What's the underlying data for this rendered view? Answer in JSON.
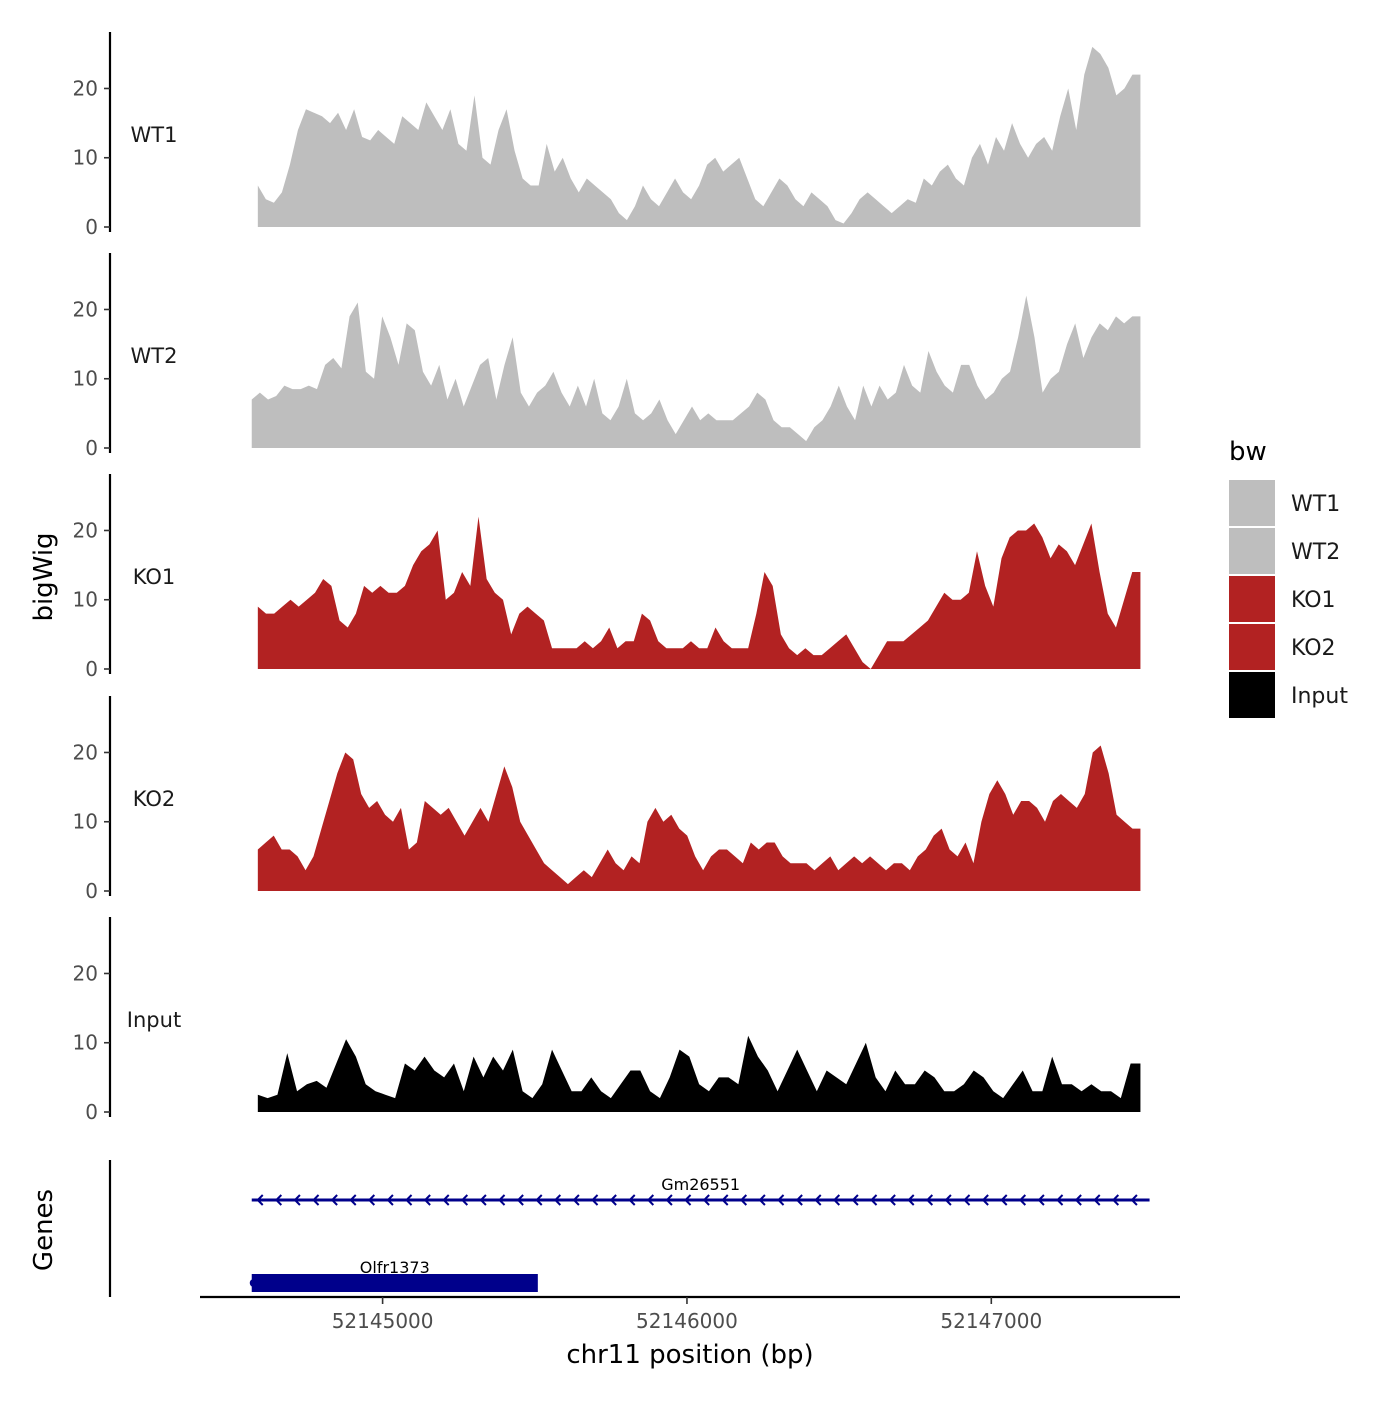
{
  "chart_data": {
    "type": "area",
    "title": "",
    "xlabel": "chr11 position (bp)",
    "ylabel": "bigWig",
    "genes_label": "Genes",
    "xlim": [
      52144400,
      52147620
    ],
    "ylim": [
      0,
      27
    ],
    "x_ticks": [
      52145000,
      52146000,
      52147000
    ],
    "x_tick_labels": [
      "52145000",
      "52146000",
      "52147000"
    ],
    "y_ticks": [
      0,
      10,
      20
    ],
    "y_tick_labels": [
      "0",
      "10",
      "20"
    ],
    "legend": {
      "title": "bw",
      "position": "right",
      "entries": [
        {
          "label": "WT1",
          "color": "#bebebe"
        },
        {
          "label": "WT2",
          "color": "#bebebe"
        },
        {
          "label": "KO1",
          "color": "#b22222"
        },
        {
          "label": "KO2",
          "color": "#b22222"
        },
        {
          "label": "Input",
          "color": "#000000"
        }
      ]
    },
    "series": [
      {
        "name": "WT1",
        "color": "#bebebe",
        "x_start": 52144590,
        "x_end": 52147490,
        "values": [
          6,
          4,
          3.5,
          5,
          9,
          14,
          17,
          16.5,
          16,
          15,
          16.5,
          14,
          17,
          13,
          12.5,
          14,
          13,
          12,
          16,
          15,
          14,
          18,
          16,
          14,
          17,
          12,
          11,
          19,
          10,
          9,
          14,
          17,
          11,
          7,
          6,
          6,
          12,
          8,
          10,
          7,
          5,
          7,
          6,
          5,
          4,
          2,
          1,
          3,
          6,
          4,
          3,
          5,
          7,
          5,
          4,
          6,
          9,
          10,
          8,
          9,
          10,
          7,
          4,
          3,
          5,
          7,
          6,
          4,
          3,
          5,
          4,
          3,
          1,
          0.5,
          2,
          4,
          5,
          4,
          3,
          2,
          3,
          4,
          3.5,
          7,
          6,
          8,
          9,
          7,
          6,
          10,
          12,
          9,
          13,
          11,
          15,
          12,
          10,
          12,
          13,
          11,
          16,
          20,
          14,
          22,
          26,
          25,
          23,
          19,
          20,
          22
        ],
        "end_value": 22
      },
      {
        "name": "WT2",
        "color": "#bebebe",
        "x_start": 52144570,
        "x_end": 52147490,
        "values": [
          7,
          8,
          7,
          7.5,
          9,
          8.5,
          8.5,
          9,
          8.5,
          12,
          13,
          11.5,
          19,
          21,
          11,
          10,
          19,
          16,
          12,
          18,
          17,
          11,
          9,
          12,
          7,
          10,
          6,
          9,
          12,
          13,
          7,
          12,
          16,
          8,
          6,
          8,
          9,
          11,
          8,
          6,
          9,
          6,
          10,
          5,
          4,
          6,
          10,
          5,
          4,
          5,
          7,
          4,
          2,
          4,
          6,
          4,
          5,
          4,
          4,
          4,
          5,
          6,
          8,
          7,
          4,
          3,
          3,
          2,
          1,
          3,
          4,
          6,
          9,
          6,
          4,
          9,
          6,
          9,
          7,
          8,
          12,
          9,
          8,
          14,
          11,
          9,
          8,
          12,
          12,
          9,
          7,
          8,
          10,
          11,
          16,
          22,
          16,
          8,
          10,
          11,
          15,
          18,
          13,
          16,
          18,
          17,
          19,
          18,
          19
        ],
        "end_value": 19
      },
      {
        "name": "KO1",
        "color": "#b22222",
        "x_start": 52144590,
        "x_end": 52147490,
        "values": [
          9,
          8,
          8,
          9,
          10,
          9,
          10,
          11,
          13,
          12,
          7,
          6,
          8,
          12,
          11,
          12,
          11,
          11,
          12,
          15,
          17,
          18,
          20,
          10,
          11,
          14,
          12,
          22,
          13,
          11,
          10,
          5,
          8,
          9,
          8,
          7,
          3,
          3,
          3,
          3,
          4,
          3,
          4,
          6,
          3,
          4,
          4,
          8,
          7,
          4,
          3,
          3,
          3,
          4,
          3,
          3,
          6,
          4,
          3,
          3,
          3,
          8,
          14,
          12,
          5,
          3,
          2,
          3,
          2,
          2,
          3,
          4,
          5,
          3,
          1,
          0,
          2,
          4,
          4,
          4,
          5,
          6,
          7,
          9,
          11,
          10,
          10,
          11,
          17,
          12,
          9,
          16,
          19,
          20,
          20,
          21,
          19,
          16,
          18,
          17,
          15,
          18,
          21,
          14,
          8,
          6,
          10,
          14
        ],
        "end_value": 14
      },
      {
        "name": "KO2",
        "color": "#b22222",
        "x_start": 52144590,
        "x_end": 52147490,
        "values": [
          6,
          7,
          8,
          6,
          6,
          5,
          3,
          5,
          9,
          13,
          17,
          20,
          19,
          14,
          12,
          13,
          11,
          10,
          12,
          6,
          7,
          13,
          12,
          11,
          12,
          10,
          8,
          10,
          12,
          10,
          14,
          18,
          15,
          10,
          8,
          6,
          4,
          3,
          2,
          1,
          2,
          3,
          2,
          4,
          6,
          4,
          3,
          5,
          4,
          10,
          12,
          10,
          11,
          9,
          8,
          5,
          3,
          5,
          6,
          6,
          5,
          4,
          7,
          6,
          7,
          7,
          5,
          4,
          4,
          4,
          3,
          4,
          5,
          3,
          4,
          5,
          4,
          5,
          4,
          3,
          4,
          4,
          3,
          5,
          6,
          8,
          9,
          6,
          5,
          7,
          4,
          10,
          14,
          16,
          14,
          11,
          13,
          13,
          12,
          10,
          13,
          14,
          13,
          12,
          14,
          20,
          21,
          17,
          11,
          10,
          9
        ],
        "end_value": 9
      },
      {
        "name": "Input",
        "color": "#000000",
        "x_start": 52144590,
        "x_end": 52147490,
        "values": [
          2.5,
          2,
          2.5,
          8.5,
          3,
          4,
          4.5,
          3.5,
          7,
          10.5,
          8,
          4,
          3,
          2.5,
          2,
          7,
          6,
          8,
          6,
          5,
          7,
          3,
          8,
          5,
          8,
          6,
          9,
          3,
          2,
          4,
          9,
          6,
          3,
          3,
          5,
          3,
          2,
          4,
          6,
          6,
          3,
          2,
          5,
          9,
          8,
          4,
          3,
          5,
          5,
          4,
          11,
          8,
          6,
          3,
          6,
          9,
          6,
          3,
          6,
          5,
          4,
          7,
          10,
          5,
          3,
          6,
          4,
          4,
          6,
          5,
          3,
          3,
          4,
          6,
          5,
          3,
          2,
          4,
          6,
          3,
          3,
          8,
          4,
          4,
          3,
          4,
          3,
          3,
          2,
          7
        ],
        "end_value": 7
      }
    ],
    "genes": [
      {
        "name": "Gm26551",
        "start": 52144570,
        "end": 52147520,
        "strand": "-",
        "type": "transcript"
      },
      {
        "name": "Olfr1373",
        "start": 52144570,
        "end": 52145510,
        "strand": "-",
        "type": "exon"
      }
    ]
  }
}
